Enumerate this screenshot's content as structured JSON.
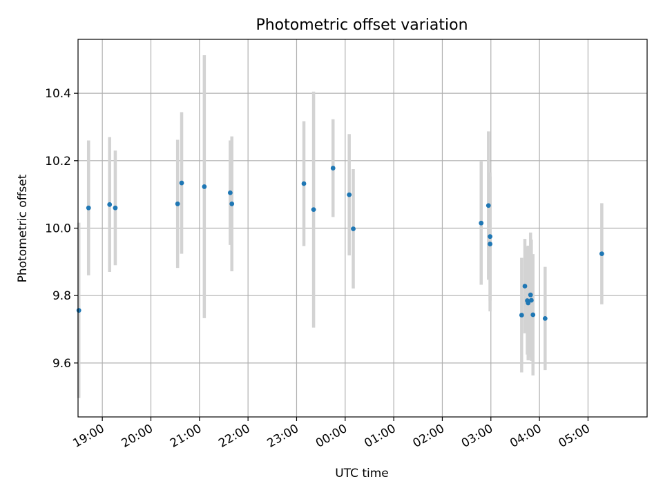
{
  "chart_data": {
    "type": "scatter",
    "title": "Photometric offset variation",
    "xlabel": "UTC time",
    "ylabel": "Photometric offset",
    "x_unit": "hours",
    "x_range": [
      "18:30",
      "06:13"
    ],
    "ylim": [
      9.44,
      10.56
    ],
    "grid": true,
    "x_tick_labels": [
      "19:00",
      "20:00",
      "21:00",
      "22:00",
      "23:00",
      "00:00",
      "01:00",
      "02:00",
      "03:00",
      "04:00",
      "05:00"
    ],
    "y_tick_labels": [
      "9.6",
      "9.8",
      "10.0",
      "10.2",
      "10.4"
    ],
    "y_ticks": [
      9.6,
      9.8,
      10.0,
      10.2,
      10.4
    ],
    "points_color": "#1f77b4",
    "errorbar_color": "#d3d3d3",
    "points": [
      {
        "t": "18:31",
        "y": 9.756,
        "err": 0.26
      },
      {
        "t": "18:43",
        "y": 10.06,
        "err": 0.2
      },
      {
        "t": "19:09",
        "y": 10.07,
        "err": 0.2
      },
      {
        "t": "19:16",
        "y": 10.06,
        "err": 0.17
      },
      {
        "t": "20:33",
        "y": 10.072,
        "err": 0.19
      },
      {
        "t": "20:38",
        "y": 10.134,
        "err": 0.21
      },
      {
        "t": "21:06",
        "y": 10.123,
        "err": 0.39
      },
      {
        "t": "21:38",
        "y": 10.105,
        "err": 0.155
      },
      {
        "t": "21:40",
        "y": 10.072,
        "err": 0.2
      },
      {
        "t": "23:09",
        "y": 10.132,
        "err": 0.185
      },
      {
        "t": "23:21",
        "y": 10.055,
        "err": 0.35
      },
      {
        "t": "23:45",
        "y": 10.178,
        "err": 0.145
      },
      {
        "t": "00:05",
        "y": 10.099,
        "err": 0.18
      },
      {
        "t": "00:10",
        "y": 9.998,
        "err": 0.177
      },
      {
        "t": "02:48",
        "y": 10.015,
        "err": 0.183
      },
      {
        "t": "02:57",
        "y": 10.067,
        "err": 0.22
      },
      {
        "t": "02:59",
        "y": 9.975,
        "err": 0.19
      },
      {
        "t": "02:59",
        "y": 9.953,
        "err": 0.2
      },
      {
        "t": "03:38",
        "y": 9.742,
        "err": 0.17
      },
      {
        "t": "03:42",
        "y": 9.828,
        "err": 0.14
      },
      {
        "t": "03:45",
        "y": 9.785,
        "err": 0.16
      },
      {
        "t": "03:46",
        "y": 9.778,
        "err": 0.17
      },
      {
        "t": "03:49",
        "y": 9.802,
        "err": 0.185
      },
      {
        "t": "03:50",
        "y": 9.786,
        "err": 0.18
      },
      {
        "t": "03:52",
        "y": 9.743,
        "err": 0.18
      },
      {
        "t": "04:07",
        "y": 9.732,
        "err": 0.153
      },
      {
        "t": "05:17",
        "y": 9.924,
        "err": 0.15
      }
    ]
  }
}
